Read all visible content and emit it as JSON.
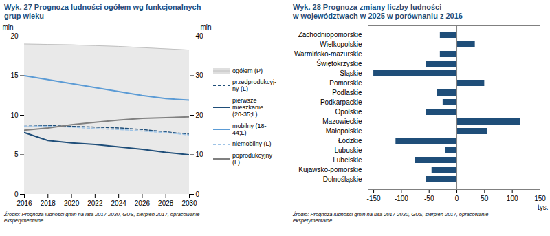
{
  "chart_data": [
    {
      "type": "line",
      "title": "Wyk. 27 Prognoza ludności ogółem wg funkcjonalnych\ngrup wieku",
      "x": [
        2016,
        2018,
        2020,
        2022,
        2024,
        2026,
        2028,
        2030
      ],
      "xlim": [
        2016,
        2030
      ],
      "xticks": [
        2016,
        2018,
        2020,
        2022,
        2024,
        2026,
        2028,
        2030
      ],
      "ylabel": "mln",
      "ylim": [
        0,
        20
      ],
      "yticks": [
        0,
        5,
        10,
        15,
        20
      ],
      "y2label": "mln",
      "y2lim": [
        0,
        40
      ],
      "y2ticks": [
        0,
        10,
        20,
        30,
        40
      ],
      "grid": false,
      "legend": "right",
      "annotations": [
        "Źródło: Prognoza ludności gmin na lata 2017-2030, GUS, sierpień 2017, opracowanie\neksperymentalne"
      ],
      "series": [
        {
          "name": "ogółem (P)",
          "type": "area",
          "axis": "y2",
          "color": "#c0c0c0",
          "values": [
            38.0,
            37.9,
            37.8,
            37.6,
            37.4,
            37.1,
            36.8,
            36.5
          ]
        },
        {
          "name": "przedprodukcyj-\nny (L)",
          "color": "#1f4e79",
          "line_style": "dashed",
          "values": [
            8.6,
            8.7,
            8.6,
            8.5,
            8.4,
            8.2,
            7.9,
            7.6
          ]
        },
        {
          "name": "pierwsze\nmieszkanie\n(20-35;L)",
          "color": "#1f4e79",
          "line_style": "solid",
          "values": [
            7.8,
            6.8,
            6.5,
            6.3,
            6.0,
            5.7,
            5.3,
            5.0
          ]
        },
        {
          "name": "mobilny (18-\n44;L)",
          "color": "#5b9bd5",
          "line_style": "solid",
          "values": [
            15.0,
            14.5,
            14.0,
            13.5,
            13.0,
            12.5,
            12.1,
            11.9
          ]
        },
        {
          "name": "niemobilny (L)",
          "color": "#9dc3e6",
          "line_style": "dashed",
          "values": [
            8.6,
            8.6,
            8.5,
            8.3,
            8.2,
            8.0,
            7.8,
            7.5
          ]
        },
        {
          "name": "poprodukcyjny\n(L)",
          "color": "#808080",
          "line_style": "solid",
          "values": [
            8.1,
            8.4,
            8.8,
            9.1,
            9.4,
            9.6,
            9.7,
            9.8
          ]
        }
      ]
    },
    {
      "type": "bar",
      "orientation": "horizontal",
      "title": "Wyk. 28 Prognoza zmiany liczby ludności\nw województwach w 2025 w porównaniu z 2016",
      "categories": [
        "Zachodniopomorskie",
        "Wielkopolskie",
        "Warmińsko-mazurskie",
        "Świętokrzyskie",
        "Śląskie",
        "Pomorskie",
        "Podlaskie",
        "Podkarpackie",
        "Opolskie",
        "Mazowieckie",
        "Małopolskie",
        "Łódzkie",
        "Lubuskie",
        "Lubelskie",
        "Kujawsko-pomorskie",
        "Dolnośląskie"
      ],
      "values": [
        -30,
        33,
        -30,
        -55,
        -150,
        50,
        -35,
        -25,
        -55,
        115,
        55,
        -110,
        -20,
        -75,
        -45,
        -55
      ],
      "color": "#1f4e79",
      "xlabel": "tys.",
      "xlim": [
        -160,
        150
      ],
      "xticks": [
        -150,
        -100,
        -50,
        0,
        50,
        100,
        150
      ],
      "grid": false,
      "annotations": [
        "Źródło: Prognoza ludności gmin na lata 2017-2030, GUS, sierpień 2017, opracowanie\neksperymentalne"
      ]
    }
  ]
}
